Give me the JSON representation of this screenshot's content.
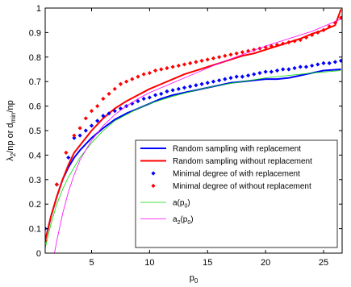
{
  "chart_data": {
    "type": "line",
    "xlabel": "p0",
    "xlabel_parts": {
      "base": "p",
      "sub": "0"
    },
    "ylabel": "λ2/np or dmin/np",
    "ylabel_parts": [
      "λ",
      "2",
      "/np or d",
      "min",
      "/np"
    ],
    "xlim": [
      1,
      26.6
    ],
    "ylim": [
      0,
      1
    ],
    "xticks": [
      5,
      10,
      15,
      20,
      25
    ],
    "yticks": [
      0,
      0.1,
      0.2,
      0.3,
      0.4,
      0.5,
      0.6,
      0.7,
      0.8,
      0.9,
      1
    ],
    "ytick_labels": [
      "0",
      "0.1",
      "0.2",
      "0.3",
      "0.4",
      "0.5",
      "0.6",
      "0.7",
      "0.8",
      "0.9",
      "1"
    ],
    "grid": false,
    "legend_position": "lower-right",
    "series": [
      {
        "name": "Random sampling with replacement",
        "legend_label": "Random sampling with replacement",
        "style": "line",
        "color": "#0000ff",
        "width": 2,
        "x": [
          1,
          1.5,
          2,
          2.5,
          3,
          3.5,
          4,
          5,
          6,
          7,
          8,
          9,
          10,
          11,
          12,
          13,
          14,
          15,
          16,
          17,
          18,
          19,
          20,
          21,
          22,
          23,
          24,
          25,
          26.5
        ],
        "y": [
          0.05,
          0.15,
          0.23,
          0.3,
          0.35,
          0.39,
          0.42,
          0.47,
          0.51,
          0.545,
          0.57,
          0.59,
          0.61,
          0.63,
          0.645,
          0.655,
          0.665,
          0.675,
          0.685,
          0.695,
          0.7,
          0.705,
          0.71,
          0.71,
          0.715,
          0.725,
          0.735,
          0.745,
          0.75
        ]
      },
      {
        "name": "Random sampling without replacement",
        "legend_label": "Random sampling without replacement",
        "style": "line",
        "color": "#ff0000",
        "width": 2,
        "x": [
          1,
          1.5,
          2,
          2.5,
          3,
          3.5,
          4,
          5,
          6,
          7,
          8,
          9,
          10,
          11,
          12,
          13,
          14,
          15,
          16,
          17,
          18,
          19,
          20,
          21,
          22,
          23,
          24,
          25,
          26,
          26.5
        ],
        "y": [
          0.05,
          0.15,
          0.23,
          0.3,
          0.36,
          0.41,
          0.44,
          0.5,
          0.55,
          0.59,
          0.62,
          0.645,
          0.67,
          0.69,
          0.71,
          0.73,
          0.745,
          0.76,
          0.775,
          0.79,
          0.805,
          0.815,
          0.83,
          0.845,
          0.86,
          0.875,
          0.895,
          0.91,
          0.93,
          0.995
        ]
      },
      {
        "name": "Minimal degree of with replacement",
        "legend_label": "Minimal degree of with replacement",
        "style": "markers",
        "color": "#0000ff",
        "x": [
          1,
          2,
          3,
          3.5,
          4,
          4.5,
          5,
          5.5,
          6,
          6.5,
          7,
          7.5,
          8,
          8.5,
          9,
          9.5,
          10,
          10.5,
          11,
          11.5,
          12,
          12.5,
          13,
          13.5,
          14,
          14.5,
          15,
          15.5,
          16,
          16.5,
          17,
          17.5,
          18,
          18.5,
          19,
          19.5,
          20,
          20.5,
          21,
          21.5,
          22,
          22.5,
          23,
          23.5,
          24,
          24.5,
          25,
          25.5,
          26,
          26.5
        ],
        "y": [
          0.1,
          0.28,
          0.39,
          0.47,
          0.48,
          0.5,
          0.52,
          0.54,
          0.56,
          0.57,
          0.58,
          0.59,
          0.6,
          0.61,
          0.62,
          0.63,
          0.635,
          0.645,
          0.65,
          0.66,
          0.665,
          0.67,
          0.675,
          0.68,
          0.685,
          0.69,
          0.695,
          0.7,
          0.705,
          0.71,
          0.715,
          0.72,
          0.72,
          0.725,
          0.73,
          0.735,
          0.74,
          0.74,
          0.745,
          0.75,
          0.75,
          0.755,
          0.76,
          0.76,
          0.765,
          0.77,
          0.775,
          0.775,
          0.78,
          0.785
        ]
      },
      {
        "name": "Minimal degree of without replacement",
        "legend_label": "Minimal degree of without replacement",
        "style": "markers",
        "color": "#ff0000",
        "x": [
          1,
          2,
          2.8,
          3.5,
          4,
          4.5,
          5,
          5.5,
          6,
          6.5,
          7,
          7.5,
          8,
          8.5,
          9,
          9.5,
          10,
          10.5,
          11,
          11.5,
          12,
          12.5,
          13,
          13.5,
          14,
          14.5,
          15,
          15.5,
          16,
          16.5,
          17,
          17.5,
          18,
          18.5,
          19,
          19.5,
          20,
          20.5,
          21,
          21.5,
          22,
          22.5,
          23,
          23.5,
          24,
          24.5,
          25,
          25.5,
          26,
          26.5
        ],
        "y": [
          0.05,
          0.28,
          0.41,
          0.48,
          0.51,
          0.55,
          0.58,
          0.6,
          0.63,
          0.65,
          0.67,
          0.69,
          0.7,
          0.71,
          0.72,
          0.73,
          0.735,
          0.745,
          0.75,
          0.755,
          0.76,
          0.765,
          0.77,
          0.775,
          0.78,
          0.785,
          0.79,
          0.795,
          0.8,
          0.805,
          0.81,
          0.815,
          0.82,
          0.825,
          0.83,
          0.835,
          0.84,
          0.845,
          0.85,
          0.855,
          0.86,
          0.865,
          0.87,
          0.88,
          0.89,
          0.9,
          0.91,
          0.925,
          0.94,
          0.96
        ]
      },
      {
        "name": "a(p0)",
        "legend_label": "a(p",
        "legend_sub": "0",
        "legend_suffix": ")",
        "style": "line",
        "color": "#00dd00",
        "width": 0.8,
        "x": [
          1,
          1.5,
          2,
          2.5,
          3,
          3.5,
          4,
          5,
          6,
          7,
          8,
          9,
          10,
          12,
          14,
          16,
          18,
          20,
          22,
          24,
          26.5
        ],
        "y": [
          0.02,
          0.12,
          0.2,
          0.26,
          0.31,
          0.35,
          0.39,
          0.45,
          0.5,
          0.54,
          0.565,
          0.59,
          0.61,
          0.64,
          0.665,
          0.685,
          0.7,
          0.715,
          0.725,
          0.735,
          0.745
        ]
      },
      {
        "name": "a2(p0)",
        "legend_label": "a",
        "legend_sub_pre": "2",
        "legend_mid": "(p",
        "legend_sub": "0",
        "legend_suffix": ")",
        "style": "line",
        "color": "#ff00ff",
        "width": 0.8,
        "x": [
          1.8,
          2,
          2.5,
          3,
          3.5,
          4,
          5,
          6,
          7,
          8,
          9,
          10,
          12,
          14,
          16,
          18,
          20,
          22,
          24,
          26.5
        ],
        "y": [
          0,
          0.05,
          0.16,
          0.25,
          0.32,
          0.38,
          0.46,
          0.52,
          0.565,
          0.6,
          0.63,
          0.655,
          0.695,
          0.735,
          0.775,
          0.81,
          0.845,
          0.875,
          0.905,
          0.955
        ]
      }
    ]
  }
}
